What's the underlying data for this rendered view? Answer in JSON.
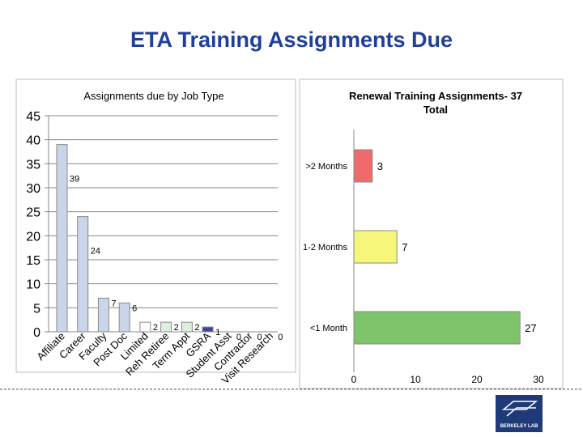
{
  "slide": {
    "title": "ETA Training Assignments Due"
  },
  "logo": {
    "text": "BERKELEY LAB"
  },
  "chart_data": [
    {
      "type": "bar",
      "title": "Assignments due by Job Type",
      "categories": [
        "Affiliate",
        "Career",
        "Faculty",
        "Post Doc",
        "Limited",
        "Reh Retiree",
        "Term Appt",
        "GSRA",
        "Student Asst",
        "Contractor",
        "Visit Research"
      ],
      "values": [
        39,
        24,
        7,
        6,
        2,
        2,
        2,
        1,
        0,
        0,
        0
      ],
      "colors": [
        "#c9d5e8",
        "#c9d5e8",
        "#c9d5e8",
        "#c9d5e8",
        "#ffffff",
        "#dcefdc",
        "#dcefdc",
        "#3c46a0",
        "#ffffff",
        "#ffffff",
        "#ffffff"
      ],
      "ylim": [
        0,
        45
      ],
      "yticks": [
        0,
        5,
        10,
        15,
        20,
        25,
        30,
        35,
        40,
        45
      ],
      "grid": true
    },
    {
      "type": "bar",
      "orientation": "horizontal",
      "title": "Renewal Training Assignments- 37 Total",
      "categories": [
        ">2 Months",
        "1-2 Months",
        "<1 Month"
      ],
      "values": [
        3,
        7,
        27
      ],
      "colors": [
        "#ef6b6b",
        "#f6f67a",
        "#7ec46a"
      ],
      "xlim": [
        0,
        30
      ],
      "xticks": [
        0,
        10,
        20,
        30
      ],
      "grid": false
    }
  ]
}
